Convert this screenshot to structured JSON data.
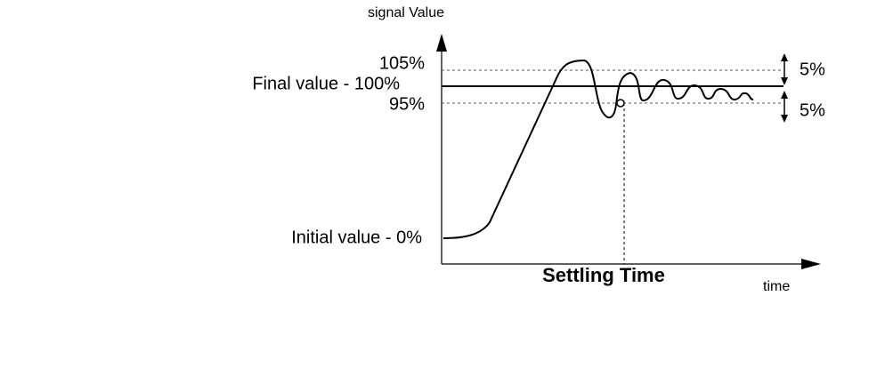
{
  "axis": {
    "y_label": "signal Value",
    "x_label": "time"
  },
  "levels": {
    "upper": "105%",
    "final": "Final value - 100%",
    "lower": "95%",
    "initial": "Initial value - 0%"
  },
  "band": {
    "upper": "5%",
    "lower": "5%"
  },
  "annotation": "Settling Time"
}
